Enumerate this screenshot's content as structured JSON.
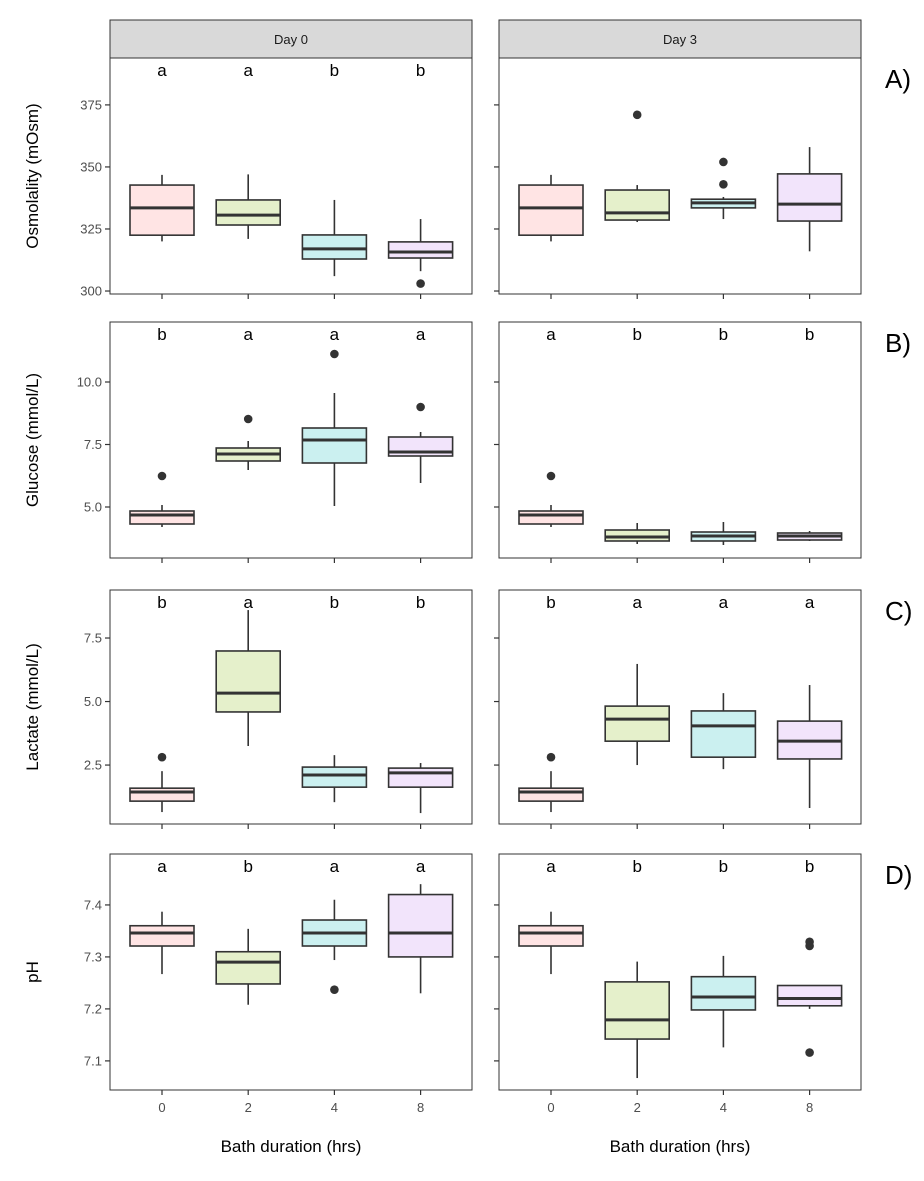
{
  "chart_data": {
    "type": "box",
    "facets": [
      "Day 0",
      "Day 3"
    ],
    "categories": [
      "0",
      "2",
      "4",
      "8"
    ],
    "xlabel": "Bath duration (hrs)",
    "fill_colors": [
      "#FFE4E4",
      "#E5F0CB",
      "#CBF0F0",
      "#F2E4FB"
    ],
    "strip_color": "#D9D9D9",
    "rows": [
      {
        "tag": "A)",
        "ylabel": "Osmolality (mOsm)",
        "ylim": [
          298.8,
          393.9
        ],
        "yticks": [
          300,
          325,
          350,
          375
        ],
        "ytick_labels": [
          "300",
          "325",
          "350",
          "375"
        ],
        "panels": [
          {
            "boxes": [
              {
                "min": 320,
                "q1": 322.5,
                "median": 333.5,
                "q3": 342.7,
                "max": 346.8,
                "outliers": [],
                "letter": "a"
              },
              {
                "min": 321,
                "q1": 326.6,
                "median": 330.6,
                "q3": 336.7,
                "max": 347,
                "outliers": [],
                "letter": "a"
              },
              {
                "min": 306,
                "q1": 312.9,
                "median": 317,
                "q3": 322.6,
                "max": 336.7,
                "outliers": [],
                "letter": "b"
              },
              {
                "min": 308,
                "q1": 313.3,
                "median": 315.7,
                "q3": 319.8,
                "max": 329,
                "outliers": [
                  303
                ],
                "letter": "b"
              }
            ]
          },
          {
            "boxes": [
              {
                "min": 320,
                "q1": 322.5,
                "median": 333.5,
                "q3": 342.7,
                "max": 346.8,
                "outliers": [],
                "letter": ""
              },
              {
                "min": 327.8,
                "q1": 328.6,
                "median": 331.5,
                "q3": 340.7,
                "max": 342.7,
                "outliers": [
                  371
                ],
                "letter": ""
              },
              {
                "min": 329,
                "q1": 333.5,
                "median": 335.5,
                "q3": 337,
                "max": 337.9,
                "outliers": [
                  352,
                  343
                ],
                "letter": ""
              },
              {
                "min": 316,
                "q1": 328.2,
                "median": 335,
                "q3": 347.2,
                "max": 358,
                "outliers": [],
                "letter": ""
              }
            ]
          }
        ]
      },
      {
        "tag": "B)",
        "ylabel": "Glucose (mmol/L)",
        "ylim": [
          2.96,
          12.4
        ],
        "yticks": [
          5,
          7.5,
          10
        ],
        "ytick_labels": [
          "5.0",
          "7.5",
          "10.0"
        ],
        "panels": [
          {
            "boxes": [
              {
                "min": 4.2,
                "q1": 4.32,
                "median": 4.68,
                "q3": 4.84,
                "max": 5.08,
                "outliers": [
                  6.24
                ],
                "letter": "b"
              },
              {
                "min": 6.48,
                "q1": 6.84,
                "median": 7.12,
                "q3": 7.36,
                "max": 7.64,
                "outliers": [
                  8.52
                ],
                "letter": "a"
              },
              {
                "min": 5.04,
                "q1": 6.76,
                "median": 7.68,
                "q3": 8.16,
                "max": 9.56,
                "outliers": [
                  11.12
                ],
                "letter": "a"
              },
              {
                "min": 5.96,
                "q1": 7.04,
                "median": 7.2,
                "q3": 7.8,
                "max": 8.0,
                "outliers": [
                  9.0
                ],
                "letter": "a"
              }
            ]
          },
          {
            "boxes": [
              {
                "min": 4.2,
                "q1": 4.32,
                "median": 4.68,
                "q3": 4.84,
                "max": 5.08,
                "outliers": [
                  6.24
                ],
                "letter": "a"
              },
              {
                "min": 3.52,
                "q1": 3.64,
                "median": 3.8,
                "q3": 4.08,
                "max": 4.36,
                "outliers": [],
                "letter": "b"
              },
              {
                "min": 3.48,
                "q1": 3.64,
                "median": 3.84,
                "q3": 4.0,
                "max": 4.4,
                "outliers": [],
                "letter": "b"
              },
              {
                "min": 3.64,
                "q1": 3.68,
                "median": 3.84,
                "q3": 3.96,
                "max": 4.04,
                "outliers": [],
                "letter": "b"
              }
            ]
          }
        ]
      },
      {
        "tag": "C)",
        "ylabel": "Lactate (mmol/L)",
        "ylim": [
          0.18,
          9.39
        ],
        "yticks": [
          2.5,
          5,
          7.5
        ],
        "ytick_labels": [
          "2.5",
          "5.0",
          "7.5"
        ],
        "panels": [
          {
            "boxes": [
              {
                "min": 0.65,
                "q1": 1.08,
                "median": 1.44,
                "q3": 1.59,
                "max": 2.26,
                "outliers": [
                  2.81
                ],
                "letter": "b"
              },
              {
                "min": 3.25,
                "q1": 4.59,
                "median": 5.33,
                "q3": 6.99,
                "max": 8.6,
                "outliers": [],
                "letter": "a"
              },
              {
                "min": 1.04,
                "q1": 1.63,
                "median": 2.11,
                "q3": 2.42,
                "max": 2.89,
                "outliers": [],
                "letter": "b"
              },
              {
                "min": 0.61,
                "q1": 1.63,
                "median": 2.19,
                "q3": 2.38,
                "max": 2.58,
                "outliers": [],
                "letter": "b"
              }
            ]
          },
          {
            "boxes": [
              {
                "min": 0.65,
                "q1": 1.08,
                "median": 1.44,
                "q3": 1.59,
                "max": 2.26,
                "outliers": [
                  2.81
                ],
                "letter": "b"
              },
              {
                "min": 2.5,
                "q1": 3.44,
                "median": 4.31,
                "q3": 4.82,
                "max": 6.48,
                "outliers": [],
                "letter": "a"
              },
              {
                "min": 2.34,
                "q1": 2.81,
                "median": 4.04,
                "q3": 4.63,
                "max": 5.33,
                "outliers": [],
                "letter": "a"
              },
              {
                "min": 0.81,
                "q1": 2.74,
                "median": 3.44,
                "q3": 4.23,
                "max": 5.65,
                "outliers": [],
                "letter": "a"
              }
            ]
          }
        ]
      },
      {
        "tag": "D)",
        "ylabel": "pH",
        "ylim": [
          7.044,
          7.498
        ],
        "yticks": [
          7.1,
          7.2,
          7.3,
          7.4
        ],
        "ytick_labels": [
          "7.1",
          "7.2",
          "7.3",
          "7.4"
        ],
        "panels": [
          {
            "boxes": [
              {
                "min": 7.267,
                "q1": 7.321,
                "median": 7.346,
                "q3": 7.36,
                "max": 7.387,
                "outliers": [],
                "letter": "a"
              },
              {
                "min": 7.208,
                "q1": 7.248,
                "median": 7.29,
                "q3": 7.31,
                "max": 7.354,
                "outliers": [],
                "letter": "b"
              },
              {
                "min": 7.294,
                "q1": 7.321,
                "median": 7.346,
                "q3": 7.371,
                "max": 7.41,
                "outliers": [
                  7.237
                ],
                "letter": "a"
              },
              {
                "min": 7.23,
                "q1": 7.3,
                "median": 7.346,
                "q3": 7.42,
                "max": 7.44,
                "outliers": [],
                "letter": "a"
              }
            ]
          },
          {
            "boxes": [
              {
                "min": 7.267,
                "q1": 7.321,
                "median": 7.346,
                "q3": 7.36,
                "max": 7.387,
                "outliers": [],
                "letter": "a"
              },
              {
                "min": 7.067,
                "q1": 7.142,
                "median": 7.179,
                "q3": 7.252,
                "max": 7.291,
                "outliers": [],
                "letter": "b"
              },
              {
                "min": 7.126,
                "q1": 7.198,
                "median": 7.223,
                "q3": 7.262,
                "max": 7.302,
                "outliers": [],
                "letter": "b"
              },
              {
                "min": 7.2,
                "q1": 7.206,
                "median": 7.22,
                "q3": 7.245,
                "max": 7.245,
                "outliers": [
                  7.329,
                  7.321,
                  7.116
                ],
                "letter": "b"
              }
            ]
          }
        ]
      }
    ]
  }
}
